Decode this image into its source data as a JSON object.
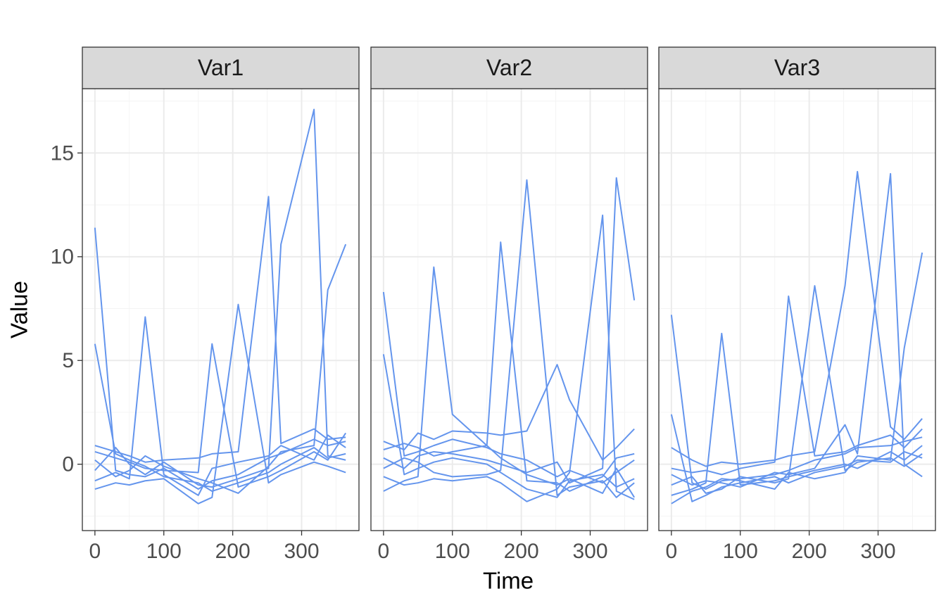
{
  "chart_data": [
    {
      "type": "line",
      "title": "Var1",
      "ylabel": "Value",
      "color": "#6495ed",
      "grid": true,
      "xlim": [
        -18.25,
        383.25
      ],
      "ylim": [
        -3.2,
        18.1
      ],
      "xticks": [
        0,
        100,
        200,
        300
      ],
      "yticks": [
        0,
        5,
        10,
        15
      ],
      "x": [
        0,
        30,
        50,
        73,
        100,
        150,
        170,
        208,
        252,
        270,
        318,
        338,
        364
      ],
      "series": [
        {
          "values": [
            11.4,
            -0.3,
            -0.5,
            -0.6,
            -0.2,
            -1.2,
            -0.8,
            -0.5,
            0.3,
            0.5,
            1.2,
            0.9,
            1.1
          ]
        },
        {
          "values": [
            5.8,
            0.5,
            0.2,
            -0.1,
            -0.6,
            -0.9,
            -1.3,
            -0.9,
            -0.4,
            0.0,
            0.8,
            0.3,
            0.5
          ]
        },
        {
          "values": [
            -0.8,
            -0.4,
            -0.7,
            7.1,
            -0.5,
            -1.5,
            -0.2,
            0.1,
            0.4,
            0.9,
            0.2,
            1.4,
            0.8
          ]
        },
        {
          "values": [
            0.6,
            0.3,
            0.1,
            -0.2,
            -0.3,
            -0.4,
            5.8,
            -1.1,
            -0.6,
            -0.3,
            0.6,
            0.2,
            1.5
          ]
        },
        {
          "values": [
            -1.2,
            -0.9,
            -1.0,
            -0.8,
            -0.7,
            -1.9,
            -1.6,
            7.7,
            -0.9,
            -0.5,
            0.1,
            -0.1,
            -0.4
          ]
        },
        {
          "values": [
            0.9,
            0.6,
            0.4,
            0.1,
            0.2,
            0.3,
            0.5,
            0.6,
            12.9,
            1.0,
            1.7,
            1.2,
            1.3
          ]
        },
        {
          "values": [
            -0.3,
            0.8,
            0.0,
            -0.5,
            0.1,
            -1.0,
            -1.1,
            -0.7,
            -0.2,
            10.6,
            17.1,
            0.4,
            0.2
          ]
        },
        {
          "values": [
            0.2,
            -0.6,
            -0.3,
            0.4,
            -0.1,
            -0.7,
            -0.9,
            -1.4,
            -0.1,
            0.6,
            0.9,
            8.4,
            10.6
          ]
        }
      ]
    },
    {
      "type": "line",
      "title": "Var2",
      "xlabel": "Time",
      "color": "#6495ed",
      "grid": true,
      "xlim": [
        -18.25,
        383.25
      ],
      "ylim": [
        -3.2,
        18.1
      ],
      "xticks": [
        0,
        100,
        200,
        300
      ],
      "yticks": [
        0,
        5,
        10,
        15
      ],
      "x": [
        0,
        30,
        50,
        73,
        100,
        150,
        170,
        208,
        252,
        270,
        318,
        338,
        364
      ],
      "series": [
        {
          "values": [
            8.3,
            0.4,
            0.6,
            0.9,
            1.2,
            0.8,
            0.5,
            0.2,
            -0.6,
            -0.3,
            -0.9,
            -0.4,
            0.2
          ]
        },
        {
          "values": [
            5.3,
            -0.5,
            -0.2,
            0.1,
            0.3,
            0.0,
            -0.4,
            -1.2,
            -1.6,
            -0.8,
            -0.5,
            -1.1,
            -0.7
          ]
        },
        {
          "values": [
            -1.3,
            -0.8,
            -0.6,
            9.5,
            2.4,
            0.9,
            0.3,
            -0.5,
            -1.0,
            -0.7,
            -1.4,
            -0.2,
            -1.6
          ]
        },
        {
          "values": [
            0.7,
            1.0,
            0.8,
            0.4,
            0.6,
            0.9,
            10.7,
            -0.8,
            -0.9,
            -1.3,
            -0.6,
            0.3,
            0.5
          ]
        },
        {
          "values": [
            -0.2,
            0.3,
            0.1,
            -0.4,
            -0.6,
            -0.5,
            -0.3,
            13.7,
            -1.5,
            -1.1,
            -0.8,
            -1.6,
            -0.9
          ]
        },
        {
          "values": [
            1.1,
            0.7,
            1.5,
            1.2,
            1.6,
            1.5,
            1.4,
            1.6,
            4.8,
            3.1,
            0.2,
            0.8,
            1.7
          ]
        },
        {
          "values": [
            -0.6,
            -1.0,
            -0.9,
            -0.7,
            -0.8,
            -0.6,
            -0.9,
            -1.8,
            -1.2,
            -0.4,
            12.0,
            -1.3,
            -1.7
          ]
        },
        {
          "values": [
            0.3,
            -0.2,
            0.4,
            0.6,
            0.5,
            0.2,
            0.0,
            -0.4,
            0.1,
            -0.9,
            -0.2,
            13.8,
            7.9
          ]
        }
      ]
    },
    {
      "type": "line",
      "title": "Var3",
      "color": "#6495ed",
      "grid": true,
      "xlim": [
        -18.25,
        383.25
      ],
      "ylim": [
        -3.2,
        18.1
      ],
      "xticks": [
        0,
        100,
        200,
        300
      ],
      "yticks": [
        0,
        5,
        10,
        15
      ],
      "x": [
        0,
        30,
        50,
        73,
        100,
        150,
        170,
        208,
        252,
        270,
        318,
        338,
        364
      ],
      "series": [
        {
          "values": [
            7.2,
            -0.9,
            -1.2,
            -0.8,
            -0.7,
            -0.5,
            -0.3,
            0.2,
            0.5,
            0.8,
            0.9,
            1.1,
            1.3
          ]
        },
        {
          "values": [
            2.4,
            -1.8,
            -1.5,
            -1.1,
            -0.9,
            -0.6,
            -0.9,
            -0.4,
            -0.1,
            0.2,
            0.1,
            0.6,
            0.3
          ]
        },
        {
          "values": [
            -1.5,
            -1.2,
            -0.9,
            6.3,
            -1.0,
            -0.8,
            -0.6,
            -0.3,
            0.0,
            -0.2,
            0.6,
            0.2,
            0.9
          ]
        },
        {
          "values": [
            -0.2,
            -0.4,
            -0.3,
            -0.5,
            -0.2,
            0.1,
            8.1,
            0.4,
            0.6,
            0.9,
            1.4,
            0.8,
            1.7
          ]
        },
        {
          "values": [
            -1.0,
            -0.6,
            -1.4,
            -1.2,
            -0.6,
            -0.9,
            -0.7,
            8.6,
            -0.3,
            0.1,
            0.3,
            -0.1,
            0.5
          ]
        },
        {
          "values": [
            0.8,
            0.2,
            -0.1,
            0.1,
            0.0,
            0.2,
            0.4,
            0.6,
            8.6,
            14.1,
            1.8,
            1.2,
            2.2
          ]
        },
        {
          "values": [
            -0.5,
            -1.0,
            -0.8,
            -0.9,
            -1.1,
            -0.4,
            -0.5,
            -0.2,
            1.9,
            0.5,
            14.0,
            0.0,
            -0.6
          ]
        },
        {
          "values": [
            -1.9,
            -1.3,
            -1.1,
            -0.7,
            -0.8,
            -1.2,
            -0.4,
            -0.7,
            -0.4,
            0.4,
            0.2,
            5.6,
            10.2
          ]
        }
      ]
    }
  ]
}
